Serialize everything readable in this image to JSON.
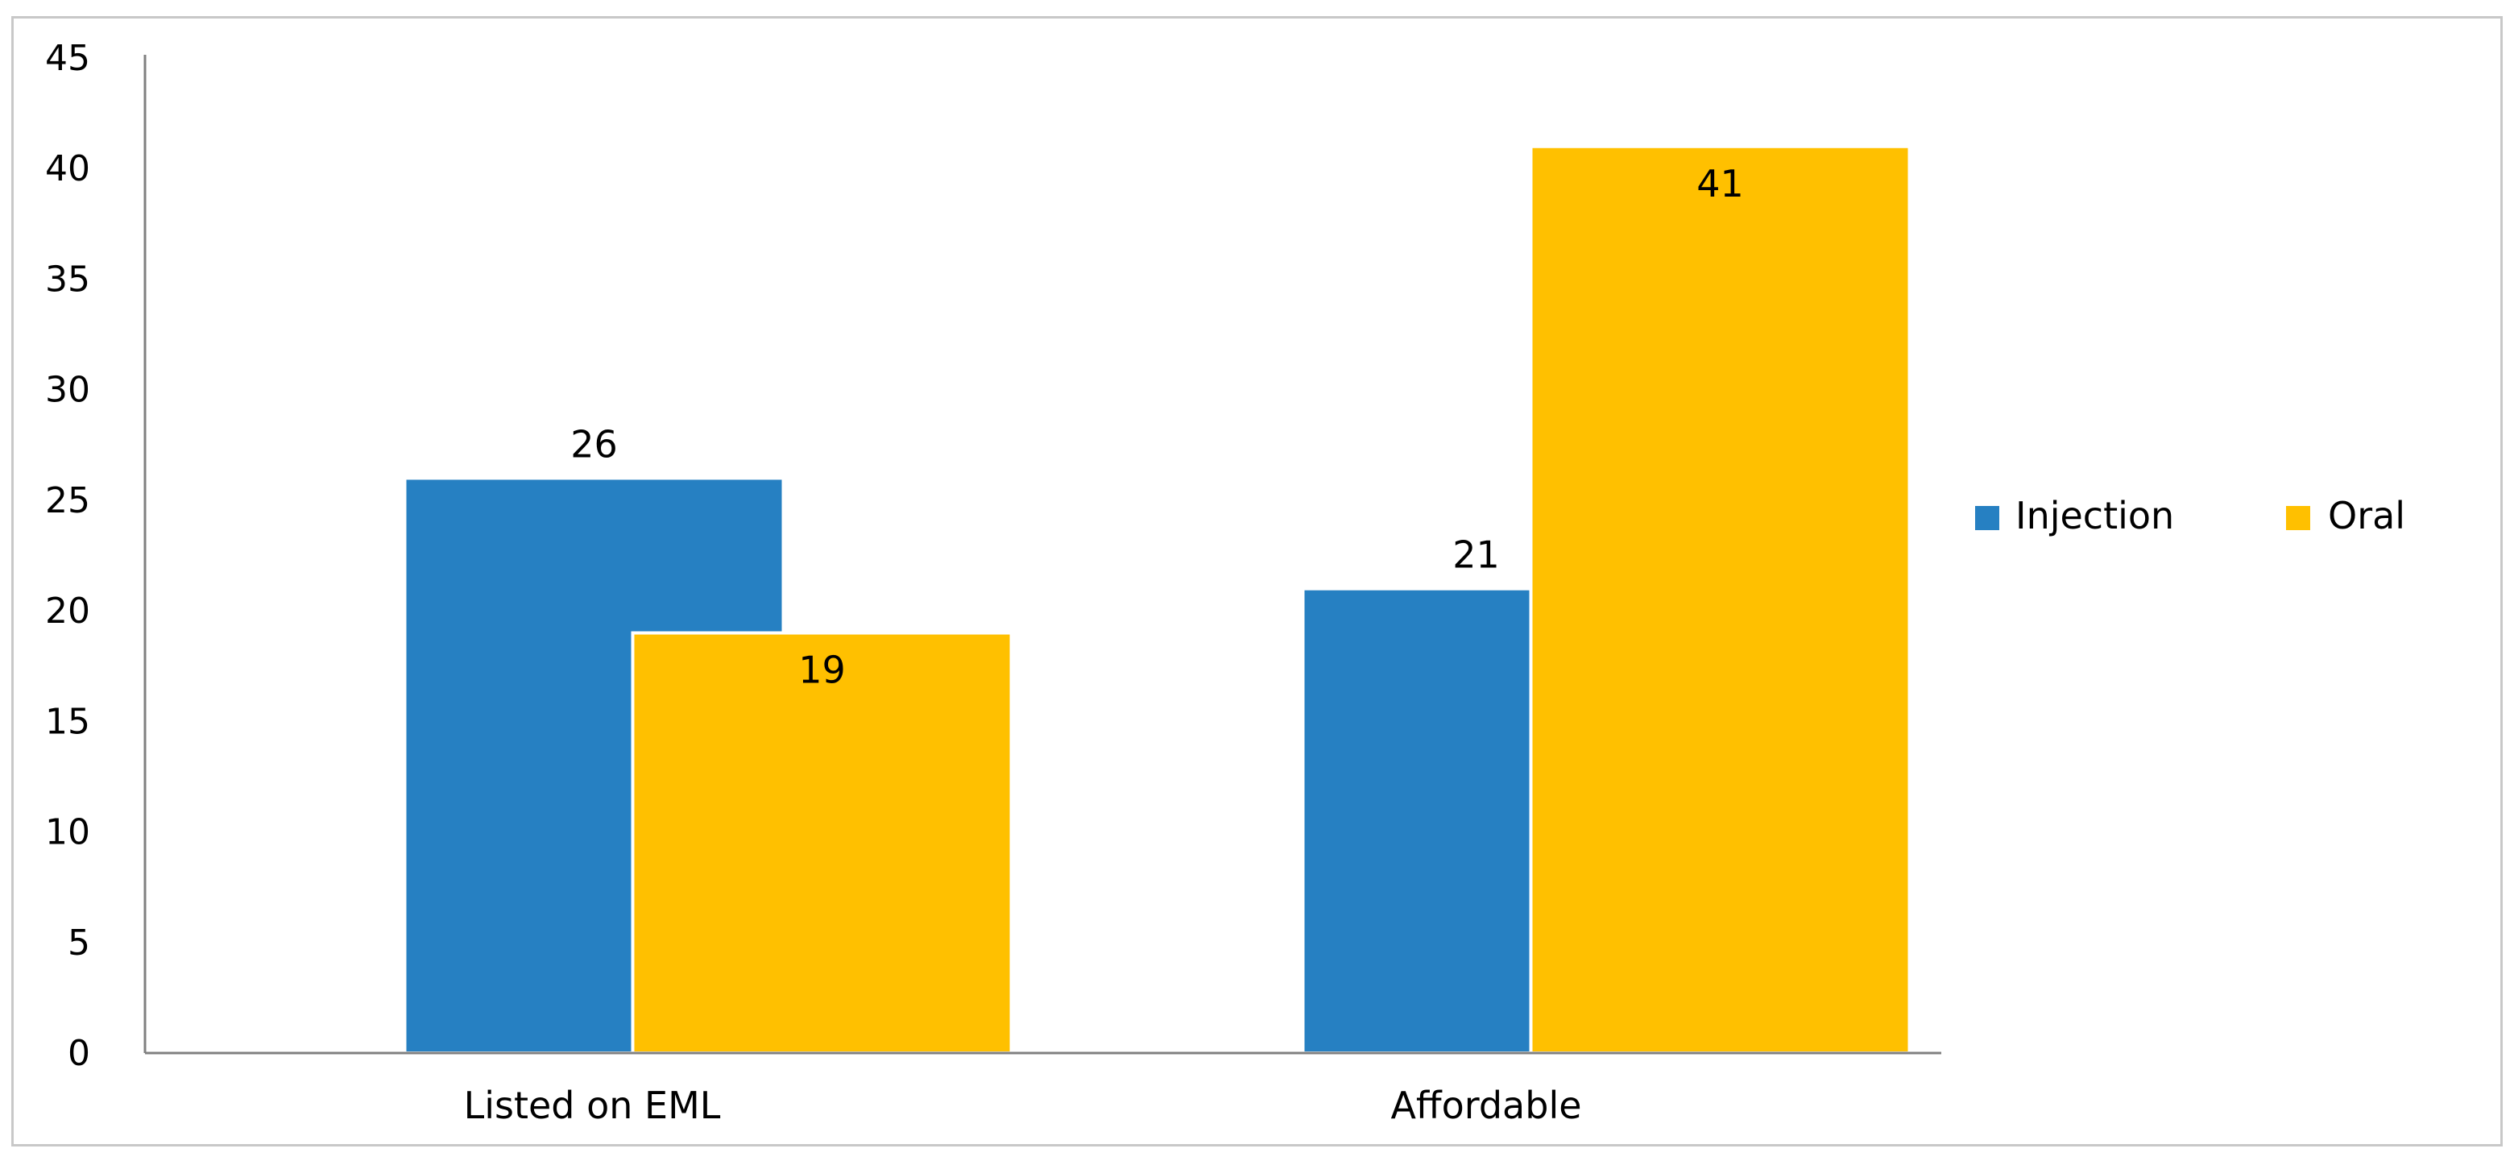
{
  "chart_data": {
    "type": "bar",
    "categories": [
      "Listed on EML",
      "Affordable"
    ],
    "series": [
      {
        "name": "Injection",
        "values": [
          26,
          21
        ],
        "color": "#2680c2"
      },
      {
        "name": "Oral",
        "values": [
          19,
          41
        ],
        "color": "#ffc000"
      }
    ],
    "title": "",
    "xlabel": "",
    "ylabel": "",
    "ylim": [
      0,
      45
    ],
    "yticks": [
      0,
      5,
      10,
      15,
      20,
      25,
      30,
      35,
      40,
      45
    ],
    "grid": false,
    "legend": "right",
    "data_labels": true
  }
}
